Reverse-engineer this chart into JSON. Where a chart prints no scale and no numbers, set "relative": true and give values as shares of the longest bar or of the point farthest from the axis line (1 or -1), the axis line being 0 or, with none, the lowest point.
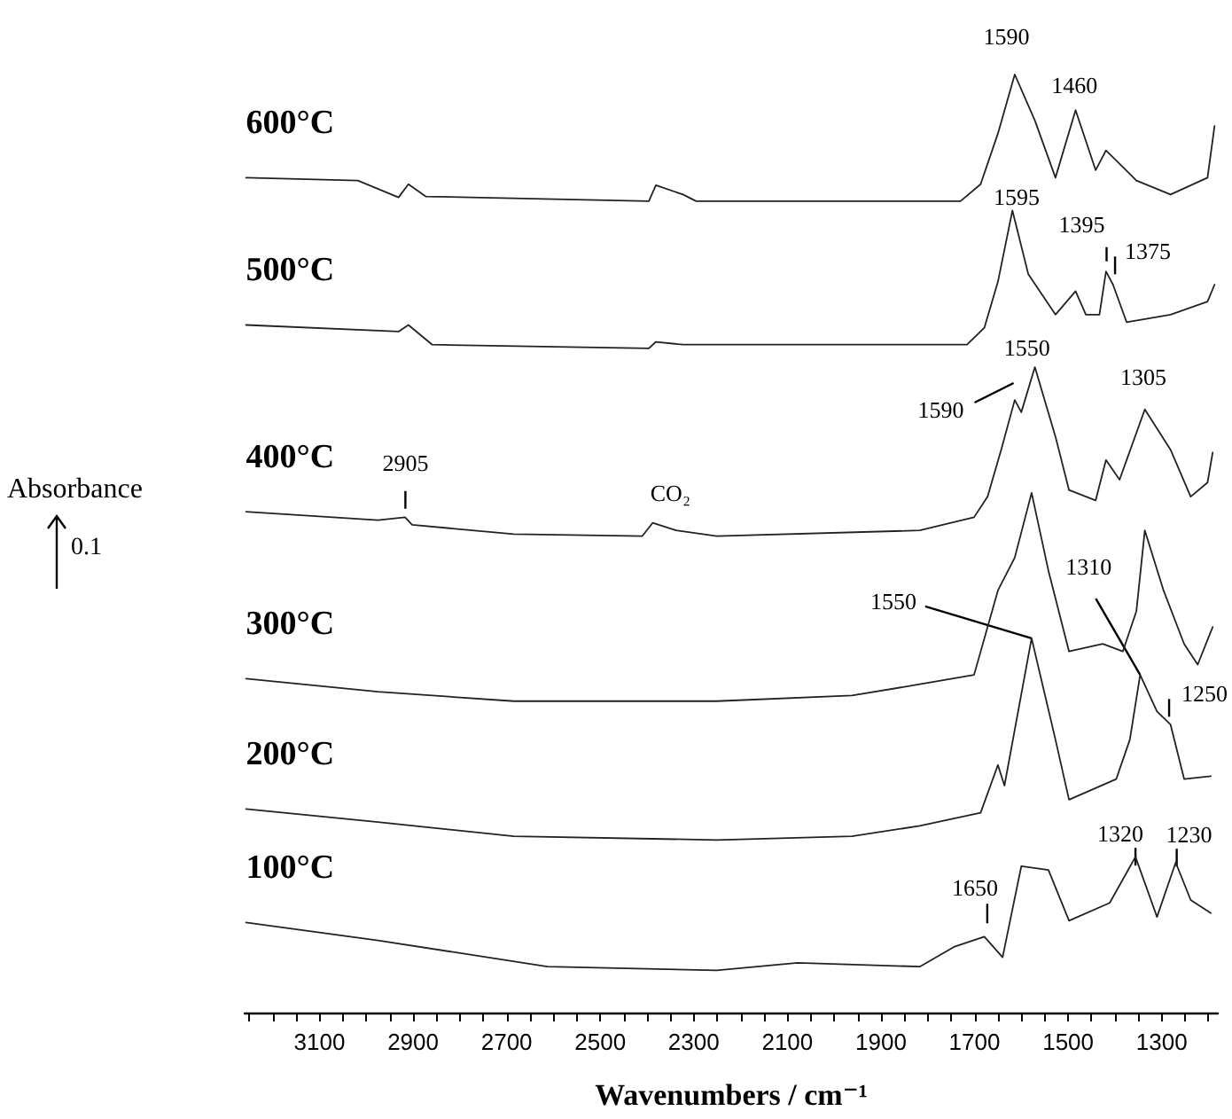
{
  "chart_data": {
    "type": "line",
    "relative": true,
    "xlabel": "Wavenumbers / cm⁻¹",
    "ylabel": "Absorbance",
    "xlim": [
      3260,
      1180
    ],
    "xticks": [
      {
        "value": 3250,
        "label": null
      },
      {
        "value": 3200,
        "label": null
      },
      {
        "value": 3150,
        "label": null
      },
      3100,
      {
        "value": 3050,
        "label": null
      },
      {
        "value": 3000,
        "label": null
      },
      {
        "value": 2950,
        "label": null
      },
      2900,
      {
        "value": 2850,
        "label": null
      },
      {
        "value": 2800,
        "label": null
      },
      {
        "value": 2750,
        "label": null
      },
      2700,
      {
        "value": 2650,
        "label": null
      },
      {
        "value": 2600,
        "label": null
      },
      {
        "value": 2550,
        "label": null
      },
      2500,
      {
        "value": 2450,
        "label": null
      },
      {
        "value": 2400,
        "label": null
      },
      {
        "value": 2350,
        "label": null
      },
      2300,
      {
        "value": 2250,
        "label": null
      },
      {
        "value": 2200,
        "label": null
      },
      {
        "value": 2150,
        "label": null
      },
      2100,
      {
        "value": 2050,
        "label": null
      },
      {
        "value": 2000,
        "label": null
      },
      {
        "value": 1950,
        "label": null
      },
      1900,
      {
        "value": 1850,
        "label": null
      },
      {
        "value": 1800,
        "label": null
      },
      {
        "value": 1750,
        "label": null
      },
      1700,
      {
        "value": 1650,
        "label": null
      },
      {
        "value": 1600,
        "label": null
      },
      {
        "value": 1550,
        "label": null
      },
      1500,
      {
        "value": 1450,
        "label": null
      },
      {
        "value": 1400,
        "label": null
      },
      {
        "value": 1350,
        "label": null
      },
      1300,
      {
        "value": 1250,
        "label": null
      },
      {
        "value": 1200,
        "label": null
      }
    ],
    "tick_labels": "x",
    "grid": false,
    "legend": false,
    "marker": "none",
    "line_style": "solid",
    "series": [
      {
        "name": "600°C",
        "color": "#222222",
        "x": [
          3257,
          3018,
          2931,
          2910,
          2873,
          2396,
          2381,
          2323,
          2295,
          1730,
          1687,
          1650,
          1614,
          1571,
          1527,
          1484,
          1441,
          1419,
          1354,
          1281,
          1202,
          1187
        ],
        "values": [
          0.89,
          0.887,
          0.869,
          0.883,
          0.87,
          0.865,
          0.882,
          0.872,
          0.865,
          0.865,
          0.883,
          0.937,
          1.0,
          0.951,
          0.89,
          0.962,
          0.898,
          0.919,
          0.887,
          0.872,
          0.89,
          0.945
        ]
      },
      {
        "name": "500°C",
        "color": "#222222",
        "x": [
          3257,
          2931,
          2910,
          2859,
          2396,
          2381,
          2323,
          1716,
          1679,
          1650,
          1619,
          1585,
          1527,
          1484,
          1462,
          1433,
          1419,
          1404,
          1375,
          1281,
          1202,
          1187
        ],
        "values": [
          0.733,
          0.726,
          0.733,
          0.712,
          0.708,
          0.715,
          0.712,
          0.712,
          0.73,
          0.779,
          0.855,
          0.787,
          0.744,
          0.769,
          0.744,
          0.744,
          0.79,
          0.776,
          0.736,
          0.744,
          0.758,
          0.776
        ]
      },
      {
        "name": "400°C",
        "color": "#222222",
        "x": [
          3257,
          2975,
          2917,
          2902,
          2685,
          2410,
          2388,
          2338,
          2251,
          1817,
          1701,
          1672,
          1643,
          1614,
          1600,
          1571,
          1527,
          1498,
          1441,
          1419,
          1390,
          1336,
          1281,
          1238,
          1202,
          1191
        ],
        "values": [
          0.534,
          0.525,
          0.528,
          0.52,
          0.51,
          0.508,
          0.522,
          0.514,
          0.508,
          0.514,
          0.528,
          0.55,
          0.6,
          0.653,
          0.64,
          0.688,
          0.614,
          0.557,
          0.546,
          0.589,
          0.568,
          0.643,
          0.6,
          0.55,
          0.565,
          0.597
        ]
      },
      {
        "name": "300°C",
        "color": "#222222",
        "x": [
          3257,
          2975,
          2685,
          2251,
          1962,
          1817,
          1701,
          1650,
          1614,
          1578,
          1542,
          1498,
          1426,
          1383,
          1354,
          1336,
          1296,
          1252,
          1223,
          1191
        ],
        "values": [
          0.356,
          0.342,
          0.332,
          0.332,
          0.338,
          0.35,
          0.36,
          0.45,
          0.485,
          0.554,
          0.471,
          0.385,
          0.393,
          0.385,
          0.428,
          0.514,
          0.45,
          0.393,
          0.371,
          0.411
        ]
      },
      {
        "name": "200°C",
        "color": "#222222",
        "x": [
          3257,
          2975,
          2685,
          2251,
          1962,
          1817,
          1687,
          1650,
          1636,
          1578,
          1527,
          1498,
          1397,
          1368,
          1346,
          1310,
          1281,
          1252,
          1195
        ],
        "values": [
          0.217,
          0.203,
          0.188,
          0.184,
          0.188,
          0.199,
          0.213,
          0.264,
          0.242,
          0.399,
          0.291,
          0.227,
          0.249,
          0.291,
          0.36,
          0.321,
          0.307,
          0.249,
          0.252
        ]
      },
      {
        "name": "100°C",
        "color": "#222222",
        "x": [
          3257,
          2975,
          2613,
          2251,
          2078,
          1817,
          1744,
          1679,
          1640,
          1600,
          1542,
          1498,
          1411,
          1356,
          1310,
          1270,
          1238,
          1195
        ],
        "values": [
          0.096,
          0.077,
          0.049,
          0.045,
          0.053,
          0.049,
          0.07,
          0.081,
          0.059,
          0.156,
          0.152,
          0.098,
          0.117,
          0.166,
          0.102,
          0.16,
          0.12,
          0.106
        ]
      }
    ],
    "annotations": [
      {
        "text": "1590",
        "x": 1590,
        "y": 0.973
      },
      {
        "text": "1460",
        "x": 1460,
        "y": 0.926
      },
      {
        "text": "1595",
        "x": 1595,
        "y": 0.807
      },
      {
        "text": "1395",
        "x": 1395,
        "y": 0.763
      },
      {
        "text": "1375",
        "x": 1375,
        "y": 0.736
      },
      {
        "text": "1550",
        "x": 1550,
        "y": 0.652
      },
      {
        "text": "1590",
        "x": 1590,
        "y": 0.656
      },
      {
        "text": "1305",
        "x": 1305,
        "y": 0.619
      },
      {
        "text": "2905",
        "x": 2905,
        "y": 0.522
      },
      {
        "text": "CO₂",
        "x": 2350,
        "y": 0.516
      },
      {
        "text": "1550",
        "x": 1578,
        "y": 0.399
      },
      {
        "text": "1310",
        "x": 1346,
        "y": 0.36
      },
      {
        "text": "1250",
        "x": 1250,
        "y": 0.391
      },
      {
        "text": "1650",
        "x": 1650,
        "y": 0.065
      },
      {
        "text": "1320",
        "x": 1320,
        "y": 0.117
      },
      {
        "text": "1230",
        "x": 1230,
        "y": 0.118
      },
      "0.1"
    ]
  }
}
